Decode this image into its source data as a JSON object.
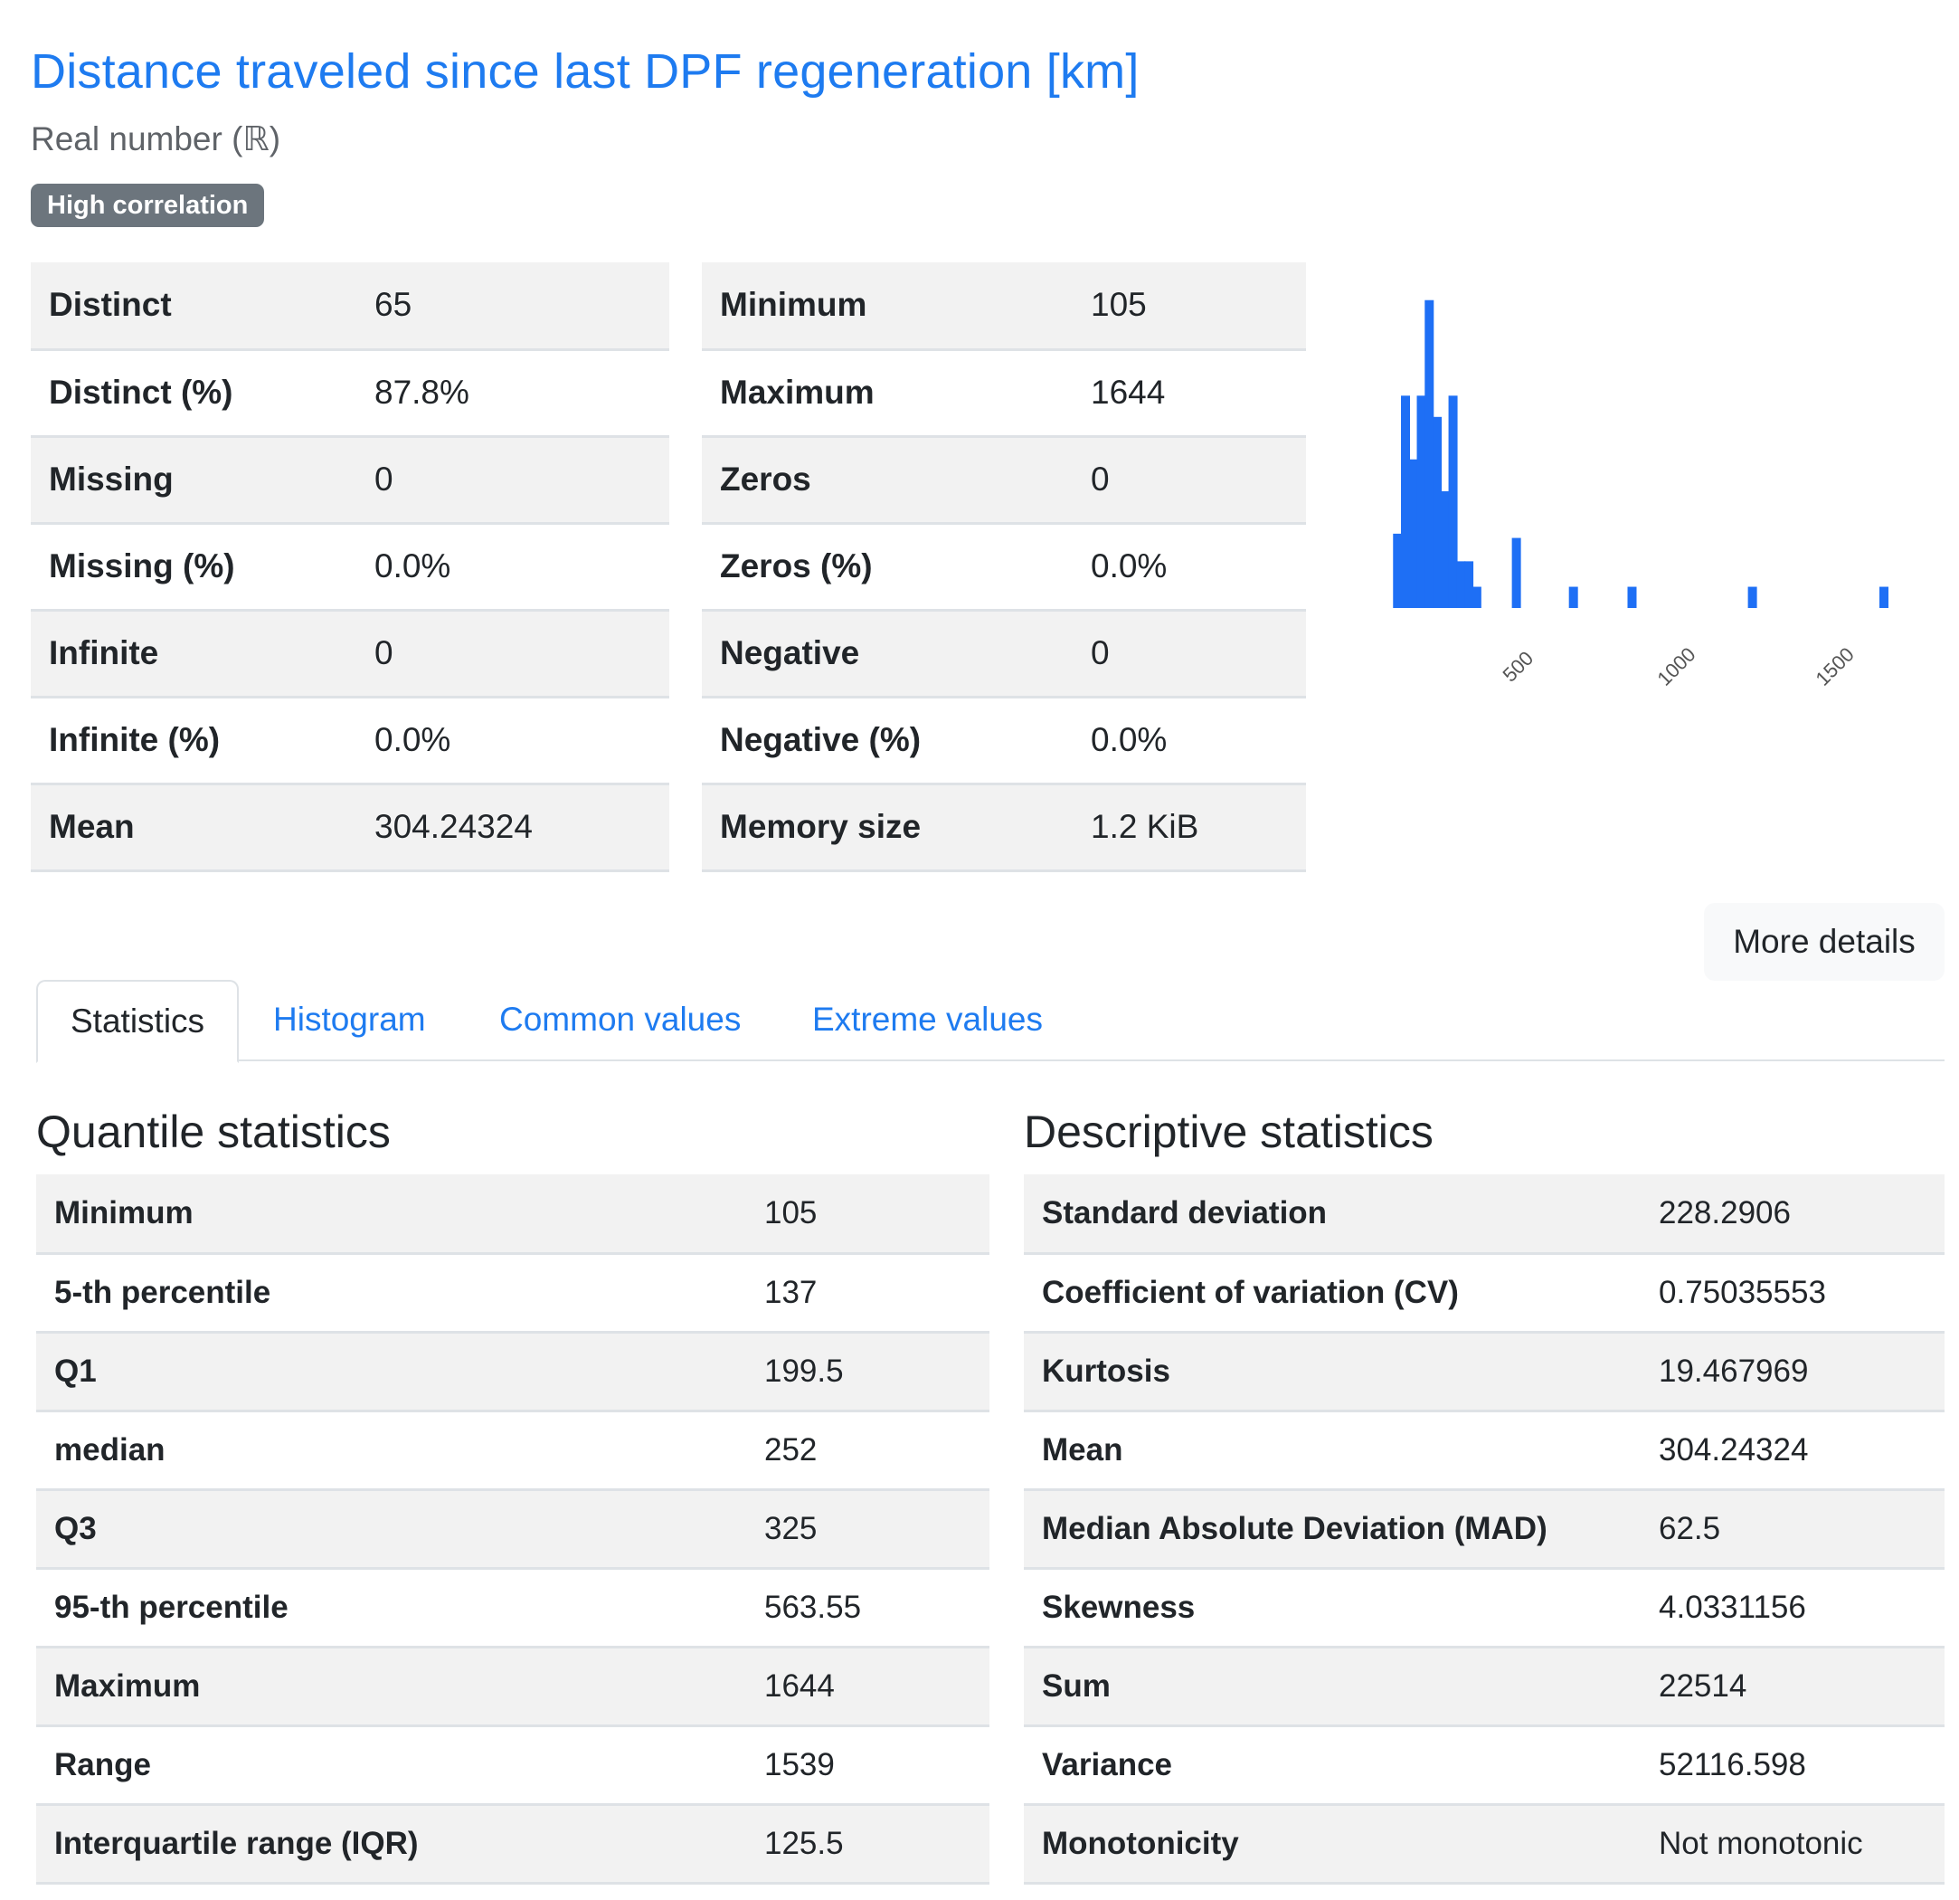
{
  "header": {
    "title": "Distance traveled since last DPF regeneration [km]",
    "subtitle": "Real number (ℝ)",
    "badge": "High correlation"
  },
  "overview_left": [
    {
      "label": "Distinct",
      "value": "65"
    },
    {
      "label": "Distinct (%)",
      "value": "87.8%"
    },
    {
      "label": "Missing",
      "value": "0"
    },
    {
      "label": "Missing (%)",
      "value": "0.0%"
    },
    {
      "label": "Infinite",
      "value": "0"
    },
    {
      "label": "Infinite (%)",
      "value": "0.0%"
    },
    {
      "label": "Mean",
      "value": "304.24324"
    }
  ],
  "overview_right": [
    {
      "label": "Minimum",
      "value": "105"
    },
    {
      "label": "Maximum",
      "value": "1644"
    },
    {
      "label": "Zeros",
      "value": "0"
    },
    {
      "label": "Zeros (%)",
      "value": "0.0%"
    },
    {
      "label": "Negative",
      "value": "0"
    },
    {
      "label": "Negative (%)",
      "value": "0.0%"
    },
    {
      "label": "Memory size",
      "value": "1.2 KiB"
    }
  ],
  "chart_data": {
    "type": "bar",
    "bar_color": "#1e6ff5",
    "xlim": [
      90,
      1660
    ],
    "ylim": [
      0,
      15
    ],
    "x_ticks": [
      500,
      1000,
      1500
    ],
    "x_tick_labels": [
      "500",
      "1000",
      "1500"
    ],
    "bins": [
      {
        "x": 105,
        "count": 3.5
      },
      {
        "x": 130,
        "count": 10
      },
      {
        "x": 155,
        "count": 7
      },
      {
        "x": 180,
        "count": 10
      },
      {
        "x": 205,
        "count": 14.5
      },
      {
        "x": 230,
        "count": 9
      },
      {
        "x": 255,
        "count": 5.5
      },
      {
        "x": 280,
        "count": 10
      },
      {
        "x": 305,
        "count": 2.2
      },
      {
        "x": 330,
        "count": 2.2
      },
      {
        "x": 355,
        "count": 1
      },
      {
        "x": 480,
        "count": 3.3
      },
      {
        "x": 660,
        "count": 1
      },
      {
        "x": 845,
        "count": 1
      },
      {
        "x": 1225,
        "count": 1
      },
      {
        "x": 1640,
        "count": 1
      }
    ]
  },
  "more_details": "More details",
  "tabs": [
    "Statistics",
    "Histogram",
    "Common values",
    "Extreme values"
  ],
  "quantile": {
    "title": "Quantile statistics",
    "rows": [
      {
        "label": "Minimum",
        "value": "105"
      },
      {
        "label": "5-th percentile",
        "value": "137"
      },
      {
        "label": "Q1",
        "value": "199.5"
      },
      {
        "label": "median",
        "value": "252"
      },
      {
        "label": "Q3",
        "value": "325"
      },
      {
        "label": "95-th percentile",
        "value": "563.55"
      },
      {
        "label": "Maximum",
        "value": "1644"
      },
      {
        "label": "Range",
        "value": "1539"
      },
      {
        "label": "Interquartile range (IQR)",
        "value": "125.5"
      }
    ]
  },
  "descriptive": {
    "title": "Descriptive statistics",
    "rows": [
      {
        "label": "Standard deviation",
        "value": "228.2906"
      },
      {
        "label": "Coefficient of variation (CV)",
        "value": "0.75035553"
      },
      {
        "label": "Kurtosis",
        "value": "19.467969"
      },
      {
        "label": "Mean",
        "value": "304.24324"
      },
      {
        "label": "Median Absolute Deviation (MAD)",
        "value": "62.5"
      },
      {
        "label": "Skewness",
        "value": "4.0331156"
      },
      {
        "label": "Sum",
        "value": "22514"
      },
      {
        "label": "Variance",
        "value": "52116.598"
      },
      {
        "label": "Monotonicity",
        "value": "Not monotonic"
      }
    ]
  }
}
